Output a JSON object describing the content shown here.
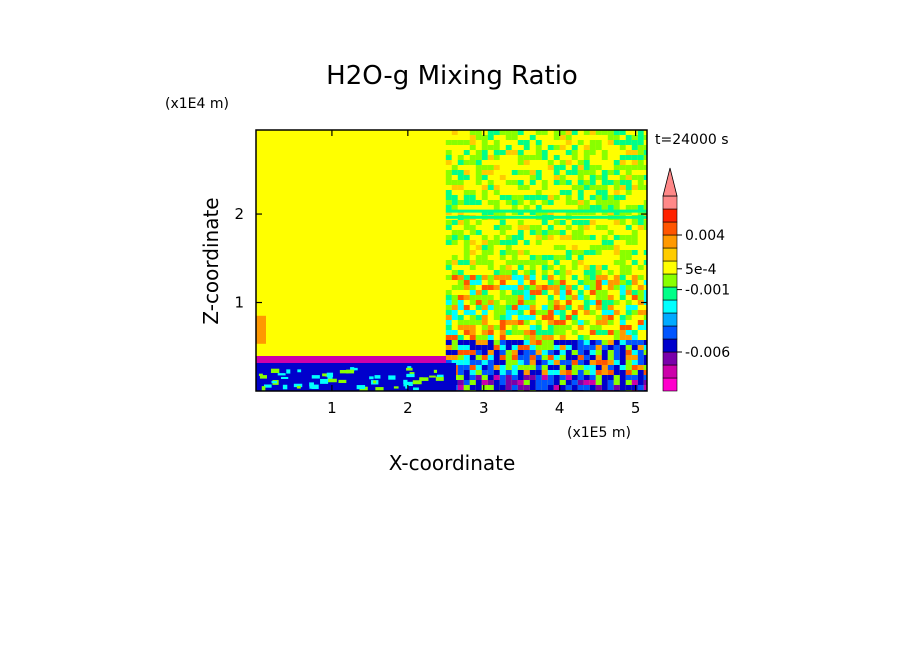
{
  "chart_data": {
    "type": "heatmap",
    "title": "H2O-g Mixing Ratio",
    "xlabel": "X-coordinate",
    "ylabel": "Z-coordinate",
    "x_scale_label": "(x1E5 m)",
    "y_scale_label": "(x1E4 m)",
    "time_label": "t=24000 s",
    "xlim": [
      0,
      5.15
    ],
    "ylim": [
      0,
      2.95
    ],
    "x_ticks": [
      1,
      2,
      3,
      4,
      5
    ],
    "x_tick_labels": [
      "1",
      "2",
      "3",
      "4",
      "5"
    ],
    "y_ticks": [
      1,
      2
    ],
    "y_tick_labels": [
      "1",
      "2"
    ],
    "colorbar": {
      "colors": [
        "#ff00cc",
        "#cc00aa",
        "#7a00aa",
        "#0000cc",
        "#0055ff",
        "#00aaff",
        "#00ffff",
        "#00ff88",
        "#88ff00",
        "#ffff00",
        "#ffcc00",
        "#ff9900",
        "#ff5500",
        "#ff2200",
        "#ff8888"
      ],
      "labeled_values": [
        {
          "label": "0.004",
          "level": 12
        },
        {
          "label": "5e-4",
          "level": 9.4
        },
        {
          "label": "-0.001",
          "level": 7.8
        },
        {
          "label": "-0.006",
          "level": 3
        }
      ],
      "extend_max": true
    },
    "regions": [
      {
        "x": [
          0,
          2.5
        ],
        "z": [
          0.38,
          2.95
        ],
        "level": "yellow"
      },
      {
        "x": [
          0,
          2.5
        ],
        "z": [
          0.3,
          0.38
        ],
        "level": "magenta"
      },
      {
        "x": [
          0,
          2.55
        ],
        "z": [
          0,
          0.3
        ],
        "level": "blue"
      },
      {
        "x": [
          2.5,
          5.15
        ],
        "z": [
          0,
          2.95
        ],
        "level": "mixed"
      }
    ]
  }
}
